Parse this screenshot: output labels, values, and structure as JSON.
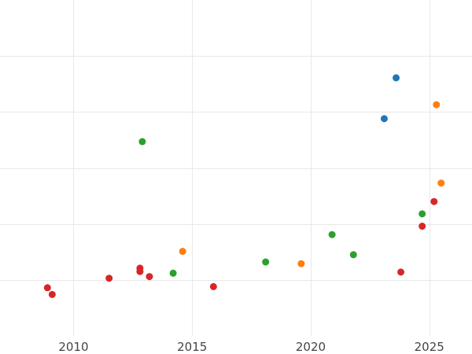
{
  "chart_data": {
    "type": "scatter",
    "title": "",
    "xlabel": "",
    "ylabel": "",
    "xlim": [
      2006.9,
      2026.8
    ],
    "ylim": [
      0,
      6
    ],
    "xticks": [
      2010,
      2015,
      2020,
      2025
    ],
    "xtick_labels": [
      "2010",
      "2015",
      "2020",
      "2025"
    ],
    "yticks": [
      1,
      2,
      3,
      4,
      5
    ],
    "grid": true,
    "legend": "none",
    "series": [
      {
        "color": "#1f77b4",
        "points": [
          {
            "x": 2023.1,
            "y": 3.88
          },
          {
            "x": 2023.6,
            "y": 4.61
          }
        ]
      },
      {
        "color": "#ff7f0e",
        "points": [
          {
            "x": 2014.6,
            "y": 1.51
          },
          {
            "x": 2019.6,
            "y": 1.29
          },
          {
            "x": 2025.3,
            "y": 4.13
          },
          {
            "x": 2025.5,
            "y": 2.73
          }
        ]
      },
      {
        "color": "#2ca02c",
        "points": [
          {
            "x": 2012.9,
            "y": 3.47
          },
          {
            "x": 2014.2,
            "y": 1.12
          },
          {
            "x": 2018.1,
            "y": 1.32
          },
          {
            "x": 2020.9,
            "y": 1.81
          },
          {
            "x": 2021.8,
            "y": 1.45
          },
          {
            "x": 2024.7,
            "y": 2.18
          }
        ]
      },
      {
        "color": "#d62728",
        "points": [
          {
            "x": 2008.9,
            "y": 0.86
          },
          {
            "x": 2009.1,
            "y": 0.74
          },
          {
            "x": 2011.5,
            "y": 1.03
          },
          {
            "x": 2012.8,
            "y": 1.21
          },
          {
            "x": 2012.8,
            "y": 1.15
          },
          {
            "x": 2013.2,
            "y": 1.06
          },
          {
            "x": 2015.9,
            "y": 0.88
          },
          {
            "x": 2023.8,
            "y": 1.14
          },
          {
            "x": 2024.7,
            "y": 1.96
          },
          {
            "x": 2025.2,
            "y": 2.4
          }
        ]
      }
    ]
  }
}
